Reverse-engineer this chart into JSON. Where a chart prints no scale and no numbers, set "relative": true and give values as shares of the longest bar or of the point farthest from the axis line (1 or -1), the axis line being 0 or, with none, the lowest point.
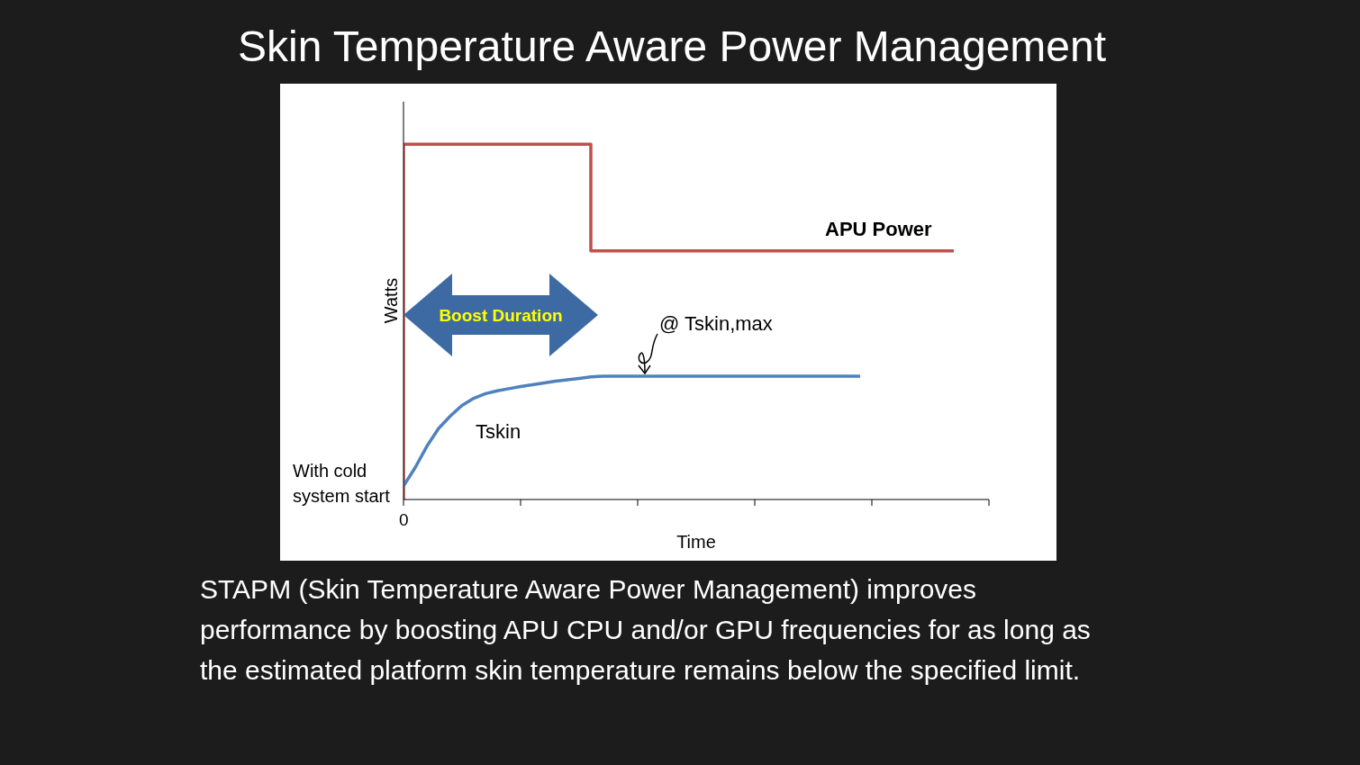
{
  "chart_data": {
    "type": "line",
    "title": "Skin Temperature Aware Power Management",
    "xlabel": "Time",
    "ylabel": "Watts",
    "relative": true,
    "categories": [
      null,
      null,
      null,
      null,
      null,
      null,
      null,
      null,
      null,
      null,
      null,
      null,
      null,
      null,
      null,
      null,
      null,
      null,
      null,
      null,
      null,
      null,
      null,
      null,
      null,
      null,
      null,
      null,
      null,
      null,
      null,
      null,
      null,
      null,
      null,
      null,
      null,
      null,
      null,
      null,
      null,
      null,
      null,
      null,
      null,
      null,
      null,
      null,
      null,
      null,
      null
    ],
    "series": [
      {
        "name": "APU Power",
        "type": "step",
        "color": "#c0504d",
        "values": [
          0,
          1,
          1,
          1,
          1,
          1,
          1,
          1,
          1,
          1,
          1,
          1,
          1,
          1,
          1,
          1,
          1,
          0.7,
          0.7,
          0.7,
          0.7,
          0.7,
          0.7,
          0.7,
          0.7,
          0.7,
          0.7,
          0.7,
          0.7,
          0.7,
          0.7,
          0.7,
          0.7,
          0.7,
          0.7,
          0.7,
          0.7,
          0.7,
          0.7,
          0.7,
          0.7,
          0.7,
          0.7,
          0.7,
          0.7,
          0.7,
          0.7,
          0.7,
          null,
          null,
          null
        ]
      },
      {
        "name": "Tskin",
        "color": "#4f81bd",
        "values": [
          0.038,
          0.09,
          0.15,
          0.2,
          0.235,
          0.265,
          0.285,
          0.298,
          0.306,
          0.312,
          0.318,
          0.323,
          0.328,
          0.333,
          0.337,
          0.341,
          0.345,
          0.347,
          0.347,
          0.347,
          0.347,
          0.347,
          0.347,
          0.347,
          0.347,
          0.347,
          0.347,
          0.347,
          0.347,
          0.347,
          0.347,
          0.347,
          0.347,
          0.347,
          0.347,
          0.347,
          0.347,
          0.347,
          0.347,
          0.347,
          null,
          null,
          null,
          null,
          null,
          null,
          null,
          null,
          null,
          null,
          null
        ]
      }
    ],
    "annotations": [
      "Boost Duration",
      "@ Tskin,max",
      "With cold system start",
      "0",
      "STAPM (Skin Temperature Aware Power Management) improves performance by boosting APU CPU and/or GPU frequencies for as long as the estimated platform skin temperature remains below the specified limit."
    ],
    "marker": "none",
    "line_style": "solid"
  }
}
